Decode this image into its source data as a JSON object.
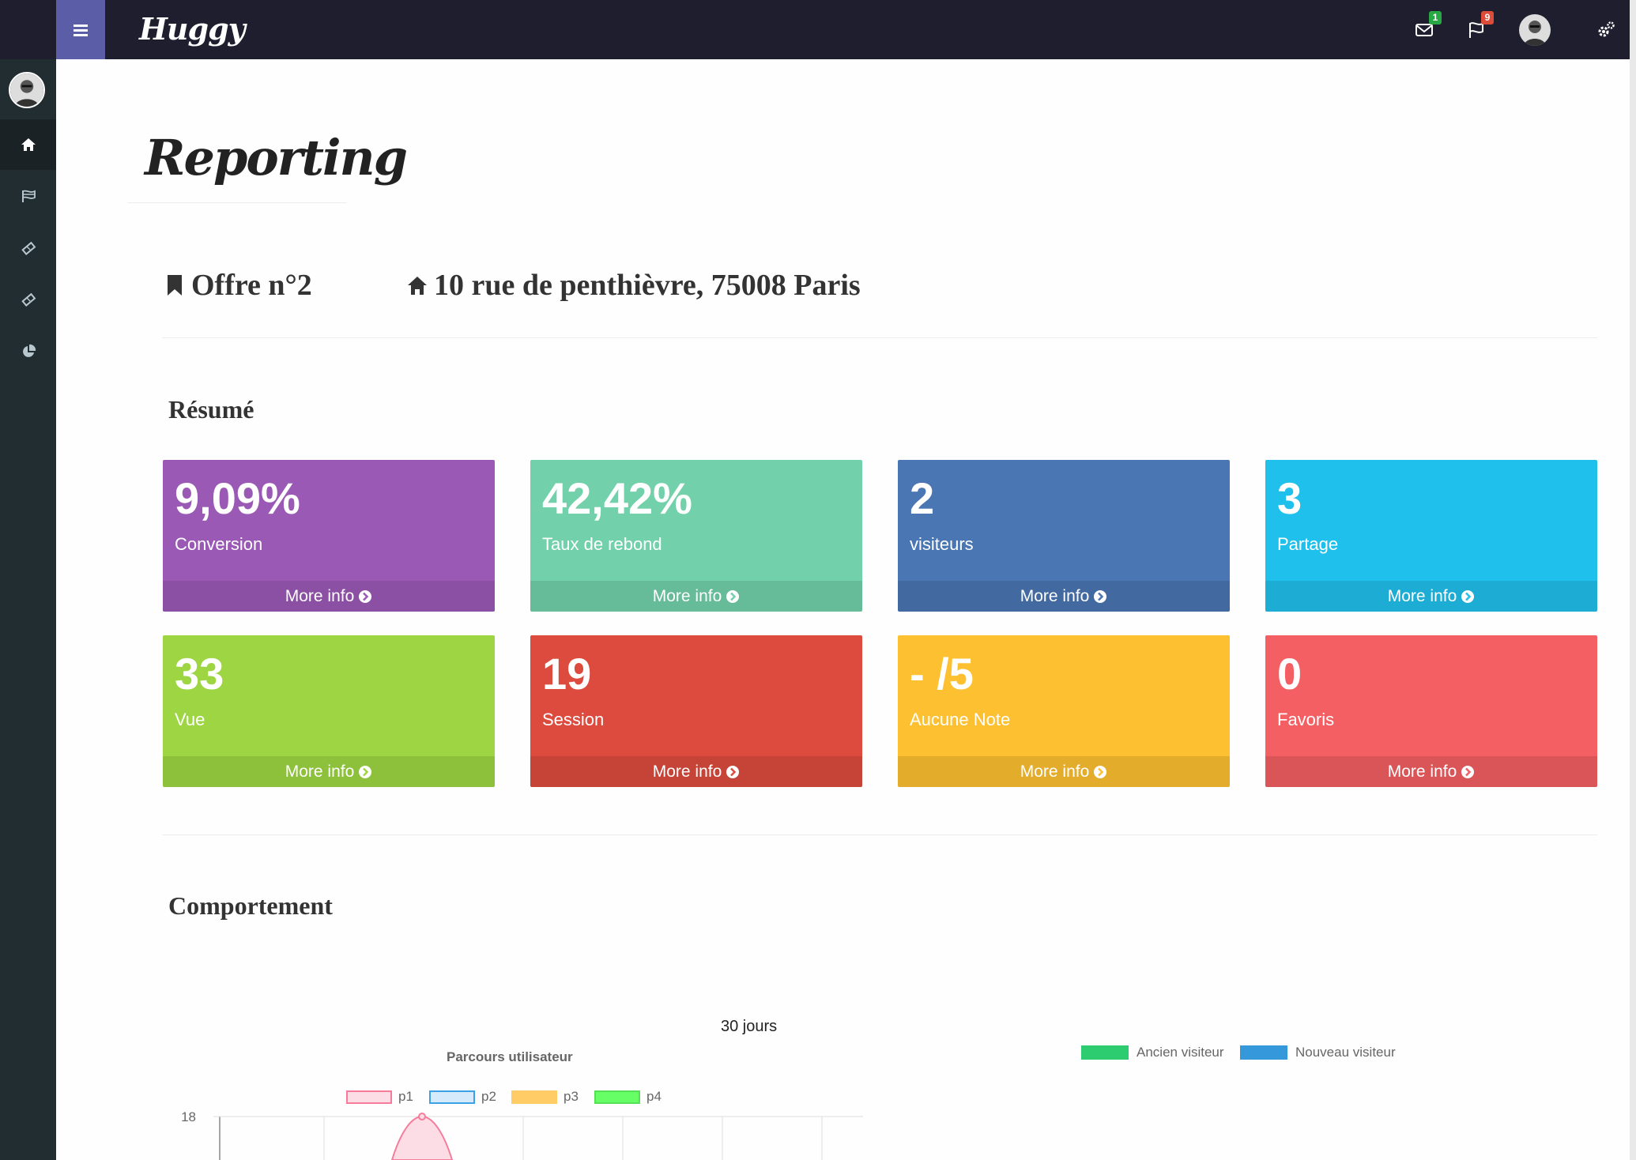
{
  "app": {
    "logo_text": "Huggy"
  },
  "topbar": {
    "mail_badge": "1",
    "flag_badge": "9"
  },
  "page": {
    "title": "Reporting"
  },
  "offer": {
    "name": "Offre n°2",
    "address": "10 rue de penthièvre, 75008 Paris"
  },
  "sections": {
    "summary": "Résumé",
    "behavior": "Comportement"
  },
  "boxes": [
    {
      "value": "9,09%",
      "label": "Conversion",
      "more": "More info",
      "color": "#9b59b6"
    },
    {
      "value": "42,42%",
      "label": "Taux de rebond",
      "more": "More info",
      "color": "#72d1aa"
    },
    {
      "value": "2",
      "label": "visiteurs",
      "more": "More info",
      "color": "#4a77b4"
    },
    {
      "value": "3",
      "label": "Partage",
      "more": "More info",
      "color": "#20c0ec"
    },
    {
      "value": "33",
      "label": "Vue",
      "more": "More info",
      "color": "#9dd642"
    },
    {
      "value": "19",
      "label": "Session",
      "more": "More info",
      "color": "#dd4b3e"
    },
    {
      "value": "- /5",
      "label": "Aucune Note",
      "more": "More info",
      "color": "#fdc030"
    },
    {
      "value": "0",
      "label": "Favoris",
      "more": "More info",
      "color": "#f35f62"
    }
  ],
  "chart_period": "30 jours",
  "chart_data": [
    {
      "type": "line",
      "title": "Parcours utilisateur",
      "ytick_top": "18",
      "series": [
        {
          "name": "p1",
          "color": "#f77b9b"
        },
        {
          "name": "p2",
          "color": "#3ba0e6"
        },
        {
          "name": "p3",
          "color": "#ffcc66"
        },
        {
          "name": "p4",
          "color": "#66ff66"
        }
      ]
    },
    {
      "type": "pie",
      "series": [
        {
          "name": "Ancien visiteur",
          "color": "#2ecc71"
        },
        {
          "name": "Nouveau visiteur",
          "color": "#3498db"
        }
      ]
    }
  ]
}
